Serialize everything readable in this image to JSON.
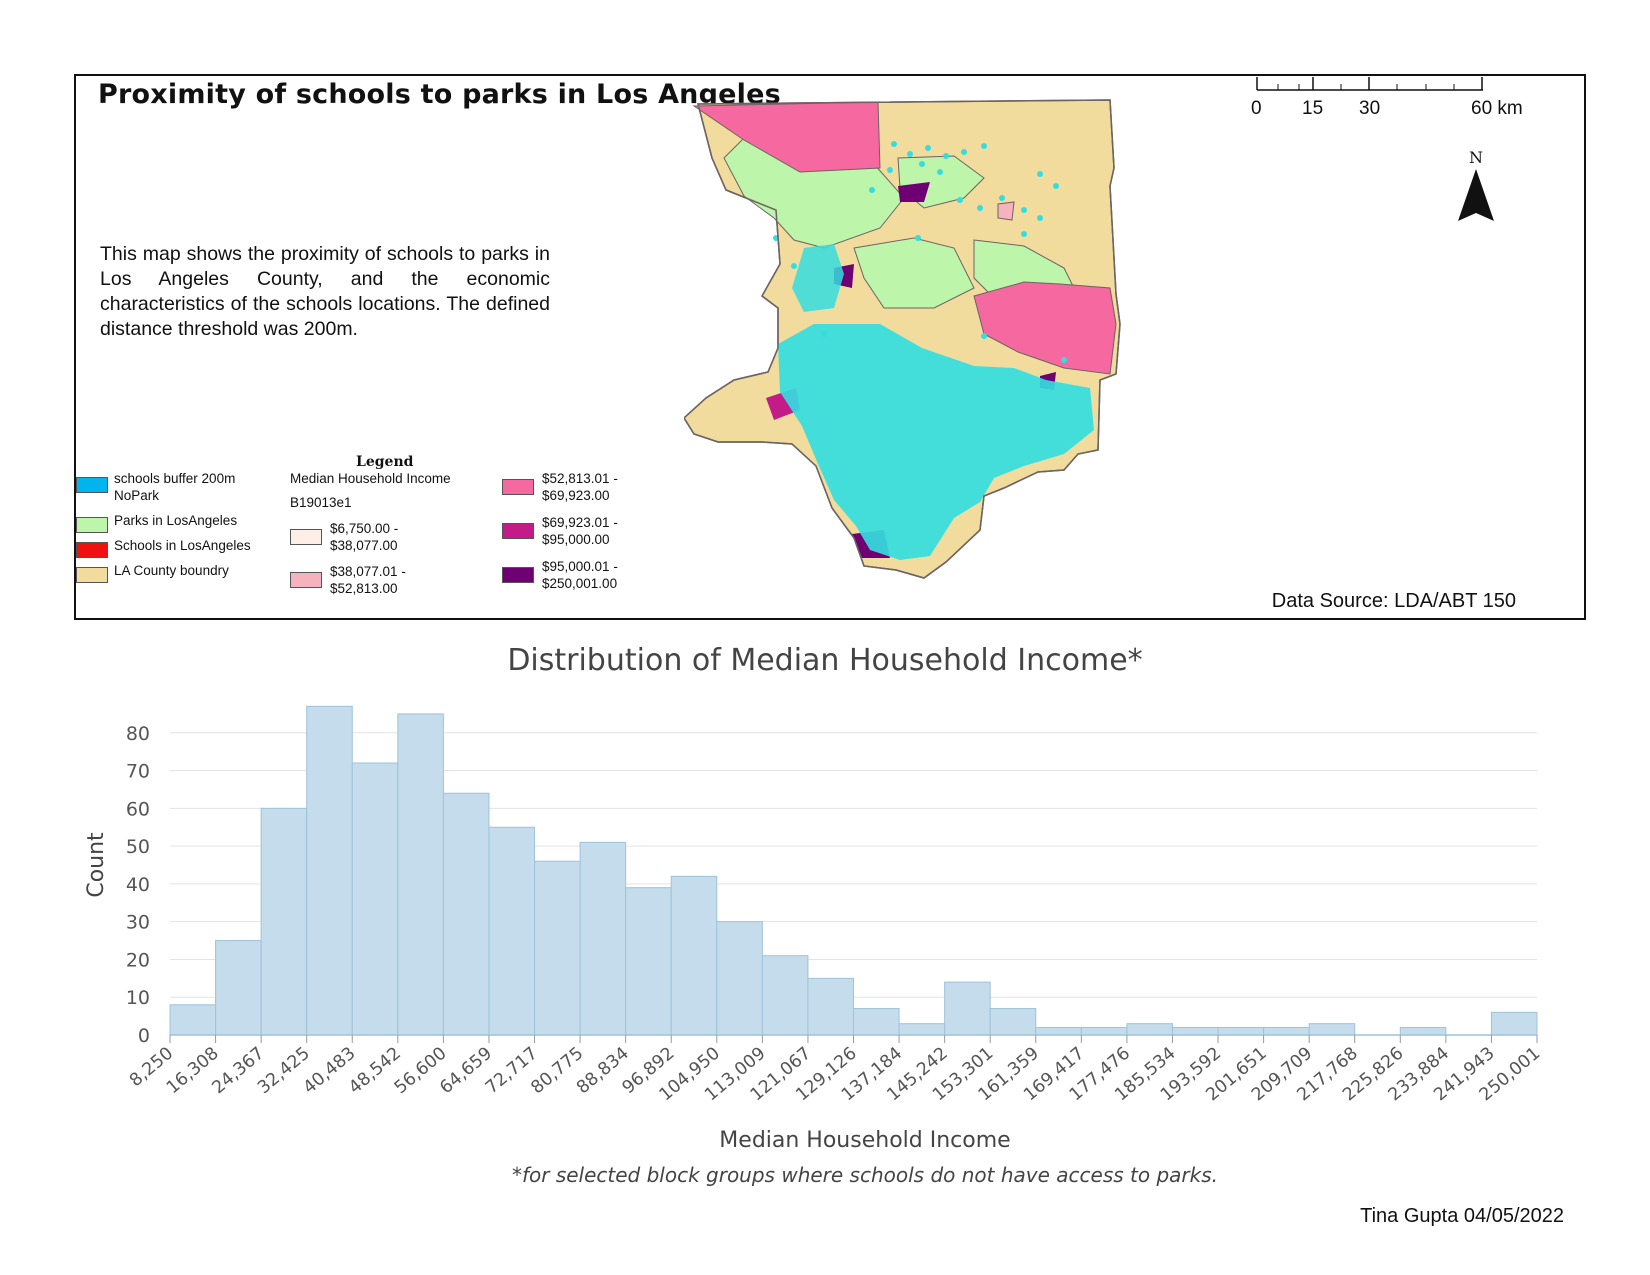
{
  "map": {
    "title": "Proximity of schools to parks in Los Angeles",
    "description": "This map shows the proximity of schools to parks in Los Angeles County, and the economic characteristics of the schools locations. The defined distance threshold was 200m.",
    "data_source": "Data Source: LDA/ABT 150",
    "north_label": "N",
    "scale_labels": [
      "0",
      "15",
      "30",
      "60 km"
    ],
    "legend": {
      "title": "Legend",
      "layers": [
        {
          "label": "schools buffer 200m\nNoPark",
          "color": "#00b4f0"
        },
        {
          "label": "Parks in LosAngeles",
          "color": "#bdf5ab"
        },
        {
          "label": "Schools in LosAngeles",
          "color": "#ee1111"
        },
        {
          "label": "LA County boundry",
          "color": "#f1dc9d"
        }
      ],
      "income_heading": "Median Household Income",
      "income_field": "B19013e1",
      "income_classes": [
        {
          "label": "$6,750.00 -\n$38,077.00",
          "color": "#fdeee6"
        },
        {
          "label": "$38,077.01 -\n$52,813.00",
          "color": "#f7b3bd"
        },
        {
          "label": "$52,813.01 -\n$69,923.00",
          "color": "#f569a0"
        },
        {
          "label": "$69,923.01 -\n$95,000.00",
          "color": "#c31b88"
        },
        {
          "label": "$95,000.01 -\n$250,001.00",
          "color": "#6f0073"
        }
      ]
    },
    "colors": {
      "county": "#f1dc9d",
      "parks": "#bdf5ab",
      "schools": "#34dde0",
      "outline": "#6d6363"
    }
  },
  "chart_data": {
    "type": "bar",
    "title": "Distribution of Median Household Income*",
    "xlabel": "Median Household Income",
    "note": "*for selected block groups where schools do not have access to parks.",
    "ylabel": "Count",
    "bin_edges": [
      "8,250",
      "16,308",
      "24,367",
      "32,425",
      "40,483",
      "48,542",
      "56,600",
      "64,659",
      "72,717",
      "80,775",
      "88,834",
      "96,892",
      "104,950",
      "113,009",
      "121,067",
      "129,126",
      "137,184",
      "145,242",
      "153,301",
      "161,359",
      "169,417",
      "177,476",
      "185,534",
      "193,592",
      "201,651",
      "209,709",
      "217,768",
      "225,826",
      "233,884",
      "241,943",
      "250,001"
    ],
    "values": [
      8,
      25,
      60,
      87,
      72,
      85,
      64,
      55,
      46,
      51,
      39,
      42,
      30,
      21,
      15,
      7,
      3,
      14,
      7,
      2,
      2,
      3,
      2,
      2,
      2,
      3,
      0,
      2,
      0,
      6
    ],
    "yticks": [
      0,
      10,
      20,
      30,
      40,
      50,
      60,
      70,
      80
    ],
    "ylim": [
      0,
      90
    ],
    "bar_color": "#c4dceb",
    "bar_edge": "#9ec3d9"
  },
  "footer": {
    "author": "Tina Gupta 04/05/2022"
  }
}
